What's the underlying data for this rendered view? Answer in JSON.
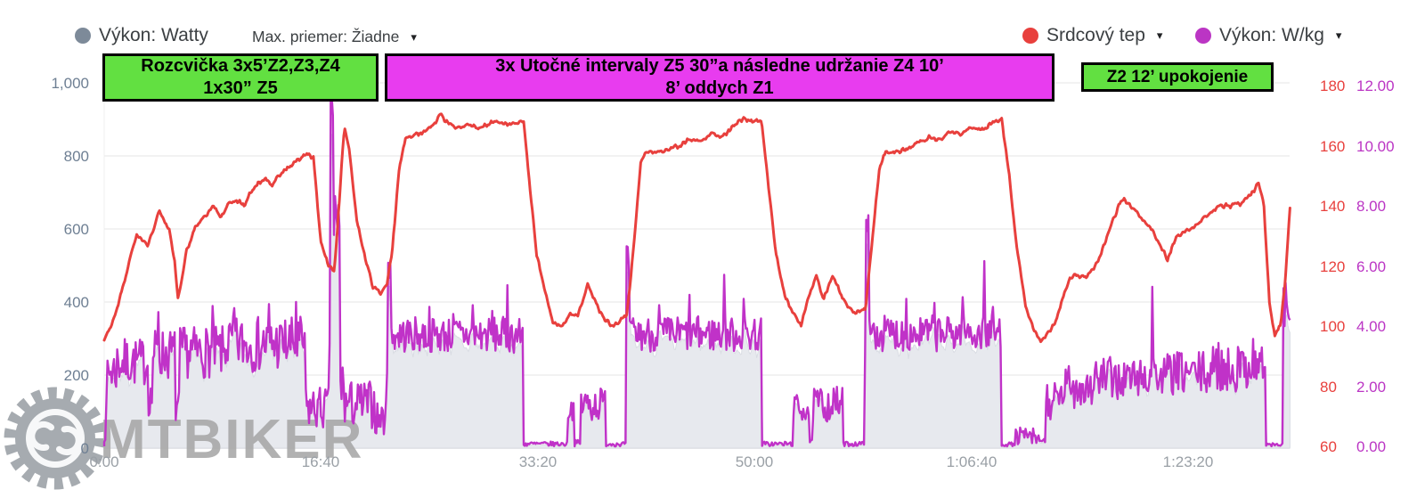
{
  "ui": {
    "dropdown_arrow": "▾"
  },
  "legend": {
    "left": [
      {
        "label": "Výkon: Watty",
        "color": "#7d8a99",
        "has_arrow": false
      }
    ],
    "max_average": {
      "label": "Max. priemer: Žiadne",
      "has_arrow": true
    },
    "right": [
      {
        "label": "Srdcový tep",
        "color": "#e8403d",
        "has_arrow": true
      },
      {
        "label": "Výkon: W/kg",
        "color": "#bb35c4",
        "has_arrow": true
      }
    ]
  },
  "annotations": [
    {
      "line1": "Rozcvička 3x5’Z2,Z3,Z4",
      "line2": "1x30” Z5",
      "color": "#62e041"
    },
    {
      "line1": "3x Utočné intervaly Z5 30”a následne udržanie Z4 10’",
      "line2": "8’ oddych Z1",
      "color": "#e83cef"
    },
    {
      "line1": "Z2 12’ upokojenie",
      "line2": "",
      "color": "#62e041"
    }
  ],
  "watermark": {
    "text": "MTBIKER"
  },
  "axes": {
    "power_watts": {
      "side": "left",
      "range": [
        0,
        1000
      ],
      "color": "#6e7f93",
      "ticks": [
        {
          "v": 0,
          "label": "0"
        },
        {
          "v": 200,
          "label": "200"
        },
        {
          "v": 400,
          "label": "400"
        },
        {
          "v": 600,
          "label": "600"
        },
        {
          "v": 800,
          "label": "800"
        },
        {
          "v": 1000,
          "label": "1,000"
        }
      ]
    },
    "heart_rate": {
      "side": "right",
      "range": [
        60,
        180
      ],
      "color": "#e8403d",
      "ticks": [
        {
          "v": 60,
          "label": "60"
        },
        {
          "v": 80,
          "label": "80"
        },
        {
          "v": 100,
          "label": "100"
        },
        {
          "v": 120,
          "label": "120"
        },
        {
          "v": 140,
          "label": "140"
        },
        {
          "v": 160,
          "label": "160"
        },
        {
          "v": 180,
          "label": "180"
        }
      ]
    },
    "power_wkg": {
      "side": "far-right",
      "range": [
        0,
        12
      ],
      "color": "#bb35c4",
      "ticks": [
        {
          "v": 0,
          "label": "0.00"
        },
        {
          "v": 2,
          "label": "2.00"
        },
        {
          "v": 4,
          "label": "4.00"
        },
        {
          "v": 6,
          "label": "6.00"
        },
        {
          "v": 8,
          "label": "8.00"
        },
        {
          "v": 10,
          "label": "10.00"
        },
        {
          "v": 12,
          "label": "12.00"
        }
      ]
    },
    "time": {
      "side": "bottom",
      "duration_s": 5470,
      "ticks": [
        {
          "t": 0,
          "label": "0:00"
        },
        {
          "t": 1000,
          "label": "16:40"
        },
        {
          "t": 2000,
          "label": "33:20"
        },
        {
          "t": 3000,
          "label": "50:00"
        },
        {
          "t": 4000,
          "label": "1:06:40"
        },
        {
          "t": 5000,
          "label": "1:23:20"
        }
      ]
    }
  },
  "chart_data": {
    "type": "line",
    "title": "",
    "grid": "horizontal-only",
    "legend_position": "top",
    "series_meta": [
      {
        "name": "Výkon: Watty",
        "type": "area",
        "axis": "power_watts",
        "fill": "#e7e9ee",
        "stroke": "#d9dce3"
      },
      {
        "name": "Srdcový tep",
        "type": "line",
        "axis": "heart_rate",
        "stroke": "#e8403d"
      },
      {
        "name": "Výkon: W/kg",
        "type": "line",
        "axis": "power_wkg",
        "stroke": "#c032c8",
        "derived_from": "power_watts",
        "divisor_kg": 75
      }
    ],
    "power_segments_t0_t1_meanW_noiseW": [
      [
        0,
        12,
        60,
        50
      ],
      [
        12,
        60,
        190,
        60
      ],
      [
        60,
        205,
        210,
        60
      ],
      [
        205,
        222,
        120,
        45
      ],
      [
        222,
        330,
        230,
        65
      ],
      [
        330,
        348,
        100,
        45
      ],
      [
        348,
        560,
        235,
        65
      ],
      [
        560,
        930,
        255,
        70
      ],
      [
        930,
        1040,
        95,
        55
      ],
      [
        1040,
        1044,
        300,
        80
      ],
      [
        1044,
        1056,
        820,
        70
      ],
      [
        1056,
        1070,
        560,
        150
      ],
      [
        1070,
        1086,
        520,
        120
      ],
      [
        1086,
        1110,
        150,
        70
      ],
      [
        1110,
        1250,
        105,
        60
      ],
      [
        1250,
        1308,
        70,
        45
      ],
      [
        1308,
        1322,
        430,
        40
      ],
      [
        1322,
        1935,
        278,
        45
      ],
      [
        1935,
        2138,
        6,
        6
      ],
      [
        2138,
        2168,
        95,
        30
      ],
      [
        2168,
        2196,
        8,
        8
      ],
      [
        2196,
        2312,
        105,
        45
      ],
      [
        2312,
        2410,
        6,
        6
      ],
      [
        2410,
        2424,
        465,
        35
      ],
      [
        2424,
        3032,
        280,
        45
      ],
      [
        3032,
        3178,
        6,
        6
      ],
      [
        3178,
        3252,
        95,
        35
      ],
      [
        3252,
        3270,
        8,
        8
      ],
      [
        3270,
        3408,
        105,
        45
      ],
      [
        3408,
        3512,
        6,
        6
      ],
      [
        3512,
        3528,
        540,
        40
      ],
      [
        3528,
        4140,
        282,
        45
      ],
      [
        4140,
        4205,
        5,
        5
      ],
      [
        4205,
        4290,
        25,
        22
      ],
      [
        4290,
        4345,
        15,
        15
      ],
      [
        4345,
        4425,
        110,
        50
      ],
      [
        4425,
        4565,
        150,
        55
      ],
      [
        4565,
        4725,
        168,
        55
      ],
      [
        4725,
        4905,
        172,
        50
      ],
      [
        4905,
        5105,
        182,
        55
      ],
      [
        5105,
        5255,
        192,
        58
      ],
      [
        5255,
        5358,
        205,
        60
      ],
      [
        5358,
        5438,
        4,
        4
      ],
      [
        5438,
        5470,
        340,
        70
      ]
    ],
    "power_spikes_t_W": [
      [
        250,
        335
      ],
      [
        502,
        350
      ],
      [
        600,
        345
      ],
      [
        760,
        355
      ],
      [
        885,
        360
      ],
      [
        1050,
        868
      ],
      [
        1078,
        602
      ],
      [
        1312,
        458
      ],
      [
        1500,
        348
      ],
      [
        1610,
        330
      ],
      [
        1700,
        352
      ],
      [
        1790,
        338
      ],
      [
        1860,
        402
      ],
      [
        2414,
        492
      ],
      [
        2560,
        352
      ],
      [
        2700,
        378
      ],
      [
        2860,
        428
      ],
      [
        2950,
        368
      ],
      [
        3516,
        565
      ],
      [
        3700,
        368
      ],
      [
        3830,
        358
      ],
      [
        3960,
        372
      ],
      [
        4058,
        462
      ],
      [
        4100,
        348
      ],
      [
        4837,
        398
      ],
      [
        5140,
        258
      ],
      [
        5230,
        248
      ],
      [
        5300,
        268
      ],
      [
        5452,
        408
      ]
    ],
    "heart_rate_points_t_bpm": [
      [
        0,
        95
      ],
      [
        50,
        103
      ],
      [
        150,
        131
      ],
      [
        200,
        127
      ],
      [
        255,
        138
      ],
      [
        300,
        132
      ],
      [
        325,
        122
      ],
      [
        340,
        109
      ],
      [
        380,
        125
      ],
      [
        420,
        133
      ],
      [
        470,
        137
      ],
      [
        505,
        140
      ],
      [
        540,
        136
      ],
      [
        575,
        141
      ],
      [
        610,
        142
      ],
      [
        645,
        140
      ],
      [
        680,
        145
      ],
      [
        715,
        148
      ],
      [
        745,
        149
      ],
      [
        775,
        147
      ],
      [
        820,
        151
      ],
      [
        870,
        154
      ],
      [
        935,
        157
      ],
      [
        965,
        156
      ],
      [
        1000,
        128
      ],
      [
        1030,
        121
      ],
      [
        1062,
        118
      ],
      [
        1085,
        142
      ],
      [
        1108,
        167
      ],
      [
        1130,
        159
      ],
      [
        1165,
        135
      ],
      [
        1200,
        124
      ],
      [
        1240,
        113
      ],
      [
        1275,
        111
      ],
      [
        1305,
        114
      ],
      [
        1330,
        126
      ],
      [
        1360,
        152
      ],
      [
        1390,
        163
      ],
      [
        1450,
        164
      ],
      [
        1510,
        166
      ],
      [
        1555,
        171
      ],
      [
        1575,
        168
      ],
      [
        1620,
        166
      ],
      [
        1680,
        167
      ],
      [
        1740,
        166
      ],
      [
        1800,
        168
      ],
      [
        1860,
        167
      ],
      [
        1935,
        168
      ],
      [
        1965,
        145
      ],
      [
        1995,
        124
      ],
      [
        2030,
        113
      ],
      [
        2070,
        101
      ],
      [
        2110,
        100
      ],
      [
        2150,
        104
      ],
      [
        2185,
        103
      ],
      [
        2230,
        114
      ],
      [
        2265,
        108
      ],
      [
        2300,
        103
      ],
      [
        2345,
        100
      ],
      [
        2412,
        104
      ],
      [
        2445,
        128
      ],
      [
        2475,
        155
      ],
      [
        2505,
        158
      ],
      [
        2555,
        158
      ],
      [
        2600,
        159
      ],
      [
        2650,
        160
      ],
      [
        2700,
        162
      ],
      [
        2750,
        162
      ],
      [
        2800,
        164
      ],
      [
        2850,
        163
      ],
      [
        2900,
        166
      ],
      [
        2950,
        169
      ],
      [
        3000,
        168
      ],
      [
        3032,
        168
      ],
      [
        3065,
        146
      ],
      [
        3100,
        124
      ],
      [
        3140,
        110
      ],
      [
        3180,
        104
      ],
      [
        3215,
        100
      ],
      [
        3250,
        110
      ],
      [
        3285,
        117
      ],
      [
        3320,
        109
      ],
      [
        3360,
        117
      ],
      [
        3395,
        111
      ],
      [
        3430,
        107
      ],
      [
        3470,
        104
      ],
      [
        3512,
        106
      ],
      [
        3545,
        130
      ],
      [
        3575,
        152
      ],
      [
        3605,
        158
      ],
      [
        3655,
        158
      ],
      [
        3705,
        159
      ],
      [
        3755,
        161
      ],
      [
        3805,
        163
      ],
      [
        3855,
        162
      ],
      [
        3905,
        165
      ],
      [
        3955,
        164
      ],
      [
        4005,
        166
      ],
      [
        4055,
        165
      ],
      [
        4100,
        168
      ],
      [
        4140,
        169
      ],
      [
        4175,
        150
      ],
      [
        4210,
        126
      ],
      [
        4250,
        107
      ],
      [
        4290,
        98
      ],
      [
        4320,
        95
      ],
      [
        4350,
        97
      ],
      [
        4385,
        101
      ],
      [
        4420,
        109
      ],
      [
        4455,
        116
      ],
      [
        4490,
        117
      ],
      [
        4530,
        116
      ],
      [
        4565,
        119
      ],
      [
        4600,
        124
      ],
      [
        4640,
        133
      ],
      [
        4680,
        140
      ],
      [
        4705,
        142
      ],
      [
        4745,
        139
      ],
      [
        4785,
        136
      ],
      [
        4825,
        133
      ],
      [
        4865,
        128
      ],
      [
        4905,
        122
      ],
      [
        4945,
        130
      ],
      [
        4985,
        131
      ],
      [
        5030,
        133
      ],
      [
        5075,
        136
      ],
      [
        5120,
        139
      ],
      [
        5165,
        140
      ],
      [
        5210,
        140
      ],
      [
        5255,
        141
      ],
      [
        5300,
        145
      ],
      [
        5325,
        147
      ],
      [
        5350,
        140
      ],
      [
        5375,
        108
      ],
      [
        5400,
        97
      ],
      [
        5425,
        100
      ],
      [
        5448,
        115
      ],
      [
        5470,
        140
      ]
    ]
  }
}
